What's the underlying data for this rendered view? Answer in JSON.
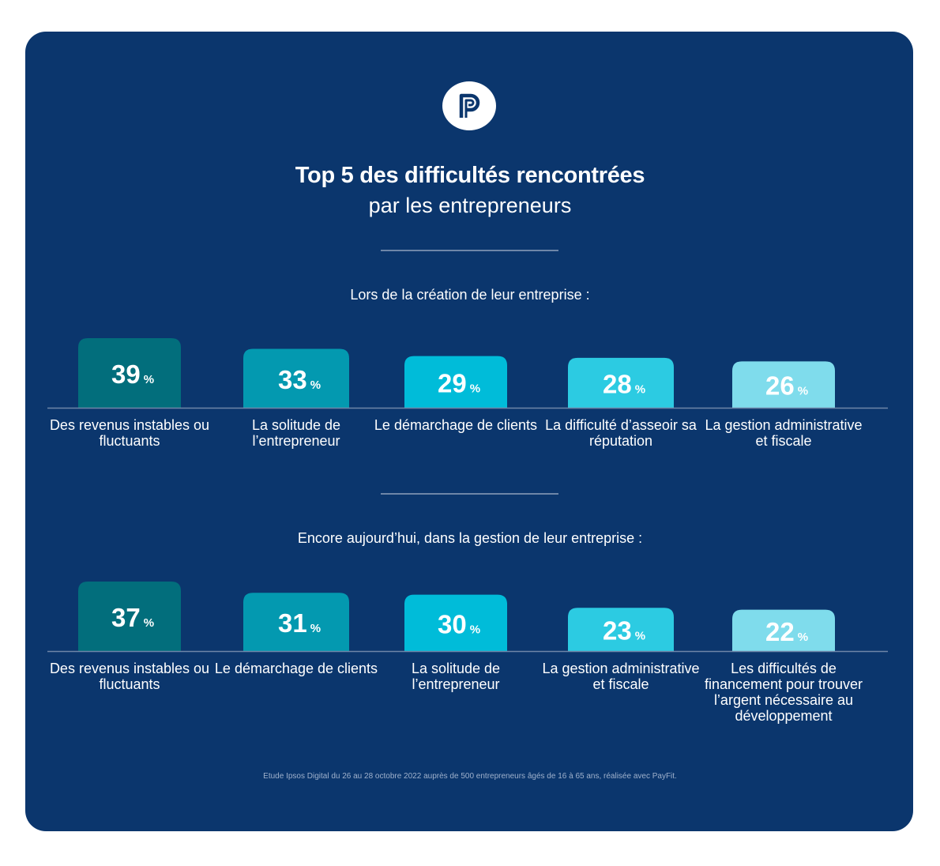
{
  "title": "Top 5 des difficultés rencontrées",
  "subtitle": "par les entrepreneurs",
  "logo_icon": "payfit-logo-icon",
  "footnote": "Etude Ipsos Digital du 26 au 28 octobre 2022 auprès de 500 entrepreneurs âgés de 16 à 65 ans, réalisée avec PayFit.",
  "colors": {
    "background": "#0b366d",
    "bars": [
      "#026e7c",
      "#0399b0",
      "#00bcd9",
      "#2ccbe2",
      "#7fdcec"
    ]
  },
  "chart_data": [
    {
      "type": "bar",
      "title": "Lors de la création de leur entreprise :",
      "unit": "%",
      "categories": [
        "Des revenus instables ou fluctuants",
        "La solitude de l’entrepreneur",
        "Le démarchage de clients",
        "La difficulté d’asseoir sa réputation",
        "La gestion administrative et fiscale"
      ],
      "values": [
        39,
        33,
        29,
        28,
        26
      ],
      "value_labels": [
        "39",
        "33",
        "29",
        "28",
        "26"
      ],
      "ylim": [
        0,
        39
      ],
      "grid": false
    },
    {
      "type": "bar",
      "title": "Encore aujourd’hui, dans la gestion de leur entreprise :",
      "unit": "%",
      "categories": [
        "Des revenus instables ou fluctuants",
        "Le démarchage de clients",
        "La solitude de l’entrepreneur",
        "La gestion administrative et fiscale",
        "Les difficultés de financement pour trouver l’argent nécessaire au développement"
      ],
      "values": [
        37,
        31,
        30,
        23,
        22
      ],
      "value_labels": [
        "37",
        "31",
        "30",
        "23",
        "22"
      ],
      "ylim": [
        0,
        37
      ],
      "grid": false
    }
  ]
}
